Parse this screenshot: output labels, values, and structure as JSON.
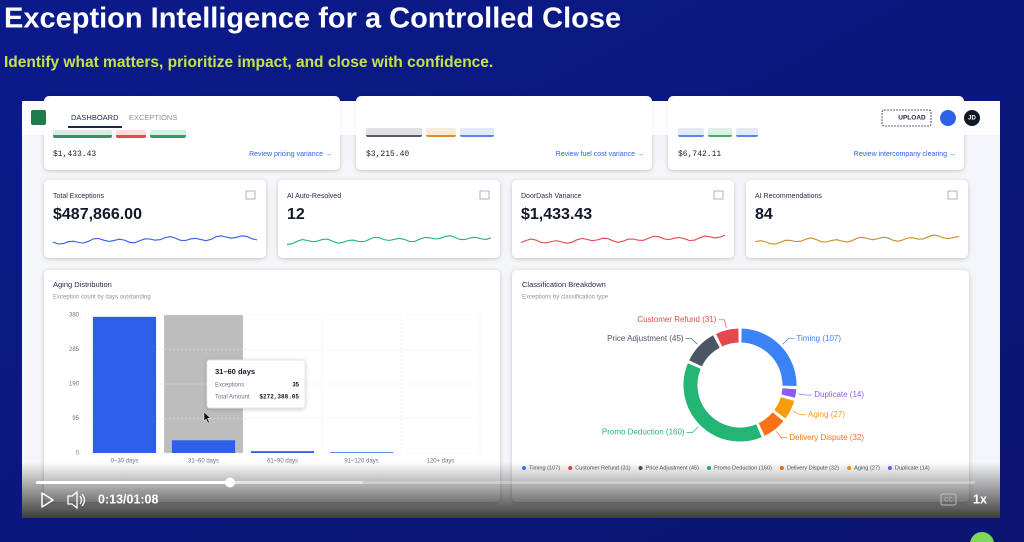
{
  "slide": {
    "title": "Exception Intelligence for a Controlled Close",
    "subtitle": "Identify what matters, prioritize impact, and close with confidence."
  },
  "app": {
    "nav": [
      "DASHBOARD",
      "EXCEPTIONS"
    ],
    "upload": "UPLOAD",
    "avatar": "JD"
  },
  "top_cards": [
    {
      "amount": "$1,433.43",
      "link": "Review pricing variance →"
    },
    {
      "amount": "$3,215.40",
      "link": "Review fuel cost variance →"
    },
    {
      "amount": "$6,742.11",
      "link": "Review intercompany clearing →"
    }
  ],
  "kpis": [
    {
      "label": "Total Exceptions",
      "value": "$487,866.00"
    },
    {
      "label": "AI Auto-Resolved",
      "value": "12"
    },
    {
      "label": "DoorDash Variance",
      "value": "$1,433.43"
    },
    {
      "label": "AI Recommendations",
      "value": "84"
    }
  ],
  "aging": {
    "type": "bar",
    "title": "Aging Distribution",
    "subtitle": "Exception count by days outstanding",
    "categories": [
      "0–30 days",
      "31–60 days",
      "61–90 days",
      "91–120 days",
      "120+ days"
    ],
    "values": [
      375,
      35,
      5,
      2,
      0
    ],
    "color": "#2f5fe8",
    "ylim": [
      0,
      380
    ],
    "yticks": [
      0,
      95,
      190,
      285,
      380
    ],
    "grid": true,
    "tooltip": {
      "count_label": "Exceptions",
      "amount_label": "Total Amount",
      "amount": "$272,388.05"
    }
  },
  "classification": {
    "type": "donut",
    "title": "Classification Breakdown",
    "subtitle": "Exceptions by classification type",
    "labels": [
      "Timing (107)",
      "Customer Refund (31)",
      "Price Adjustment (45)",
      "Promo Deduction (160)",
      "Delivery Dispute (32)",
      "Aging (27)",
      "Duplicate (14)"
    ],
    "values": [
      107,
      31,
      45,
      160,
      32,
      27,
      14
    ],
    "colors": [
      "#3b82f6",
      "#e5484d",
      "#4b5563",
      "#22b573",
      "#f97316",
      "#f59e0b",
      "#8b5cf6"
    ]
  },
  "player": {
    "time": "0:13/01:08",
    "cc": "CC",
    "speed": "1x"
  }
}
